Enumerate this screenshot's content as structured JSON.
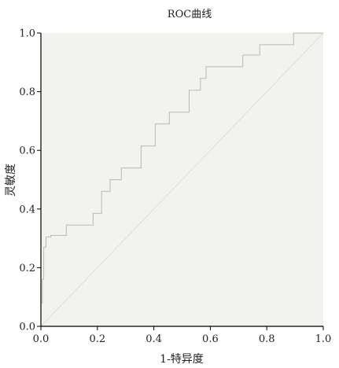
{
  "chart_data": {
    "type": "line",
    "title": "ROC曲线",
    "xlabel": "1-特异度",
    "ylabel": "灵敏度",
    "xlim": [
      0.0,
      1.0
    ],
    "ylim": [
      0.0,
      1.0
    ],
    "xticks": [
      "0.0",
      "0.2",
      "0.4",
      "0.6",
      "0.8",
      "1.0"
    ],
    "yticks": [
      "0.0",
      "0.2",
      "0.4",
      "0.6",
      "0.8",
      "1.0"
    ],
    "grid": false,
    "plot_background": "#f2f2ef",
    "curve_color": "#b8b8b8",
    "reference_color": "#dcdcd6",
    "series": [
      {
        "x": [
          0.0,
          0.0,
          0.005,
          0.005,
          0.01,
          0.01,
          0.018,
          0.018,
          0.035,
          0.035,
          0.09,
          0.09,
          0.185,
          0.185,
          0.215,
          0.215,
          0.245,
          0.245,
          0.285,
          0.285,
          0.355,
          0.355,
          0.405,
          0.405,
          0.455,
          0.455,
          0.525,
          0.525,
          0.565,
          0.565,
          0.585,
          0.585,
          0.615,
          0.615,
          0.715,
          0.715,
          0.755,
          0.755,
          0.775,
          0.775,
          0.895,
          0.895,
          1.0,
          1.0
        ],
        "y": [
          0.0,
          0.08,
          0.08,
          0.16,
          0.16,
          0.27,
          0.27,
          0.305,
          0.305,
          0.31,
          0.31,
          0.345,
          0.345,
          0.385,
          0.385,
          0.46,
          0.46,
          0.5,
          0.5,
          0.54,
          0.54,
          0.615,
          0.615,
          0.69,
          0.69,
          0.73,
          0.73,
          0.805,
          0.805,
          0.845,
          0.845,
          0.885,
          0.885,
          0.885,
          0.885,
          0.925,
          0.925,
          0.925,
          0.925,
          0.96,
          0.96,
          1.0,
          1.0,
          1.0
        ]
      }
    ],
    "reference_line": {
      "x": [
        0.0,
        1.0
      ],
      "y": [
        0.0,
        1.0
      ]
    }
  }
}
